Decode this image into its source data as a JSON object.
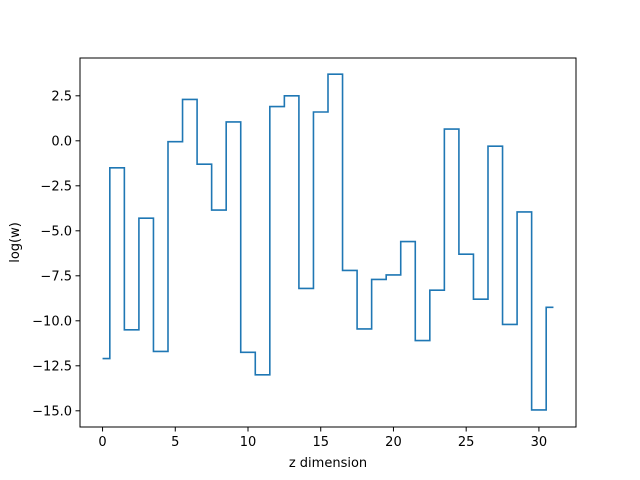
{
  "chart_data": {
    "type": "line",
    "drawstyle": "steps-mid",
    "title": "",
    "xlabel": "z dimension",
    "ylabel": "log(w)",
    "xlim": [
      -1.55,
      32.55
    ],
    "ylim": [
      -15.9,
      4.6
    ],
    "xticks": [
      0,
      5,
      10,
      15,
      20,
      25,
      30
    ],
    "xtick_labels": [
      "0",
      "5",
      "10",
      "15",
      "20",
      "25",
      "30"
    ],
    "yticks": [
      2.5,
      0.0,
      -2.5,
      -5.0,
      -7.5,
      -10.0,
      -12.5,
      -15.0
    ],
    "ytick_labels": [
      "2.5",
      "0.0",
      "−2.5",
      "−5.0",
      "−7.5",
      "−10.0",
      "−12.5",
      "−15.0"
    ],
    "grid": false,
    "legend": "none",
    "series": [
      {
        "color": "#1f77b4",
        "x": [
          0,
          1,
          2,
          3,
          4,
          5,
          6,
          7,
          8,
          9,
          10,
          11,
          12,
          13,
          14,
          15,
          16,
          17,
          18,
          19,
          20,
          21,
          22,
          23,
          24,
          25,
          26,
          27,
          28,
          29,
          30,
          31
        ],
        "values": [
          -12.1,
          -1.5,
          -10.5,
          -4.3,
          -11.7,
          -0.05,
          2.3,
          -1.3,
          -3.85,
          1.05,
          -11.75,
          -13.0,
          1.9,
          2.5,
          -8.2,
          1.6,
          3.7,
          -7.2,
          -10.45,
          -7.7,
          -7.45,
          -5.6,
          -11.1,
          -8.3,
          0.65,
          -6.3,
          -8.8,
          -0.3,
          -10.2,
          -3.95,
          -14.95,
          -9.25
        ]
      }
    ]
  }
}
